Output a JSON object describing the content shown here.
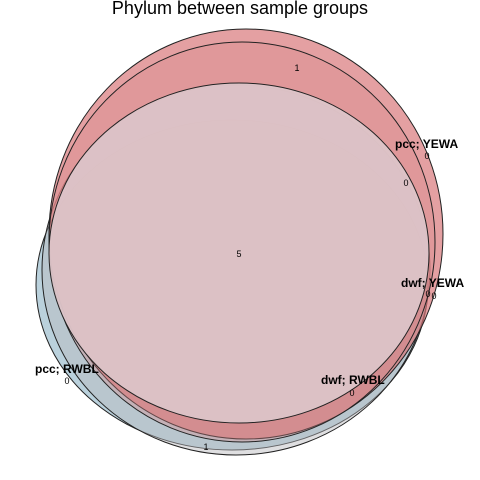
{
  "title": "Phylum between sample groups",
  "colors": {
    "pcc_yewa": "#d9777a",
    "dwf_yewa": "#d98a8d",
    "dwf_rwbl": "#b8b8bc",
    "pcc_rwbl": "#8fb4c7",
    "center": "#dcc4c8",
    "outline": "#222222"
  },
  "sets": [
    {
      "id": "pcc_yewa",
      "label": "pcc; YEWA"
    },
    {
      "id": "dwf_yewa",
      "label": "dwf; YEWA"
    },
    {
      "id": "dwf_rwbl",
      "label": "dwf; RWBL"
    },
    {
      "id": "pcc_rwbl",
      "label": "pcc; RWBL"
    }
  ],
  "counts": {
    "top_only": "1",
    "center": "5",
    "bottom_only": "1",
    "near_pcc_yewa": "0",
    "right_inner": "0",
    "near_dwf_yewa_a": "0",
    "near_dwf_yewa_b": "0",
    "near_dwf_rwbl": "0",
    "near_pcc_rwbl": "0"
  }
}
